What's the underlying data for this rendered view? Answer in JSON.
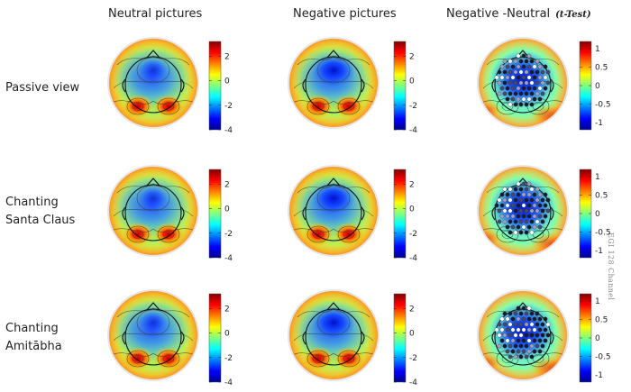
{
  "figure": {
    "columns": [
      {
        "label": "Neutral pictures",
        "subtitle": ""
      },
      {
        "label": "Negative pictures",
        "subtitle": ""
      },
      {
        "label": "Negative -Neutral",
        "subtitle": "(t-Test)"
      }
    ],
    "rows": [
      {
        "label": "Passive view"
      },
      {
        "label": "Chanting\nSanta Claus"
      },
      {
        "label": "Chanting\nAmitābha"
      }
    ],
    "side_label": "EGI 128 Channel",
    "colorbars": {
      "amplitude": {
        "min": -4,
        "max": 3.2,
        "ticks": [
          "2",
          "0",
          "-2",
          "-4"
        ]
      },
      "t_test": {
        "min": -1.2,
        "max": 1.2,
        "ticks": [
          "1",
          "0.5",
          "0",
          "-0.5",
          "-1"
        ]
      }
    },
    "colormap": [
      "#00008f",
      "#0000ff",
      "#0080ff",
      "#00ffff",
      "#80ff80",
      "#ffff00",
      "#ff8000",
      "#ff0000",
      "#800000"
    ]
  }
}
